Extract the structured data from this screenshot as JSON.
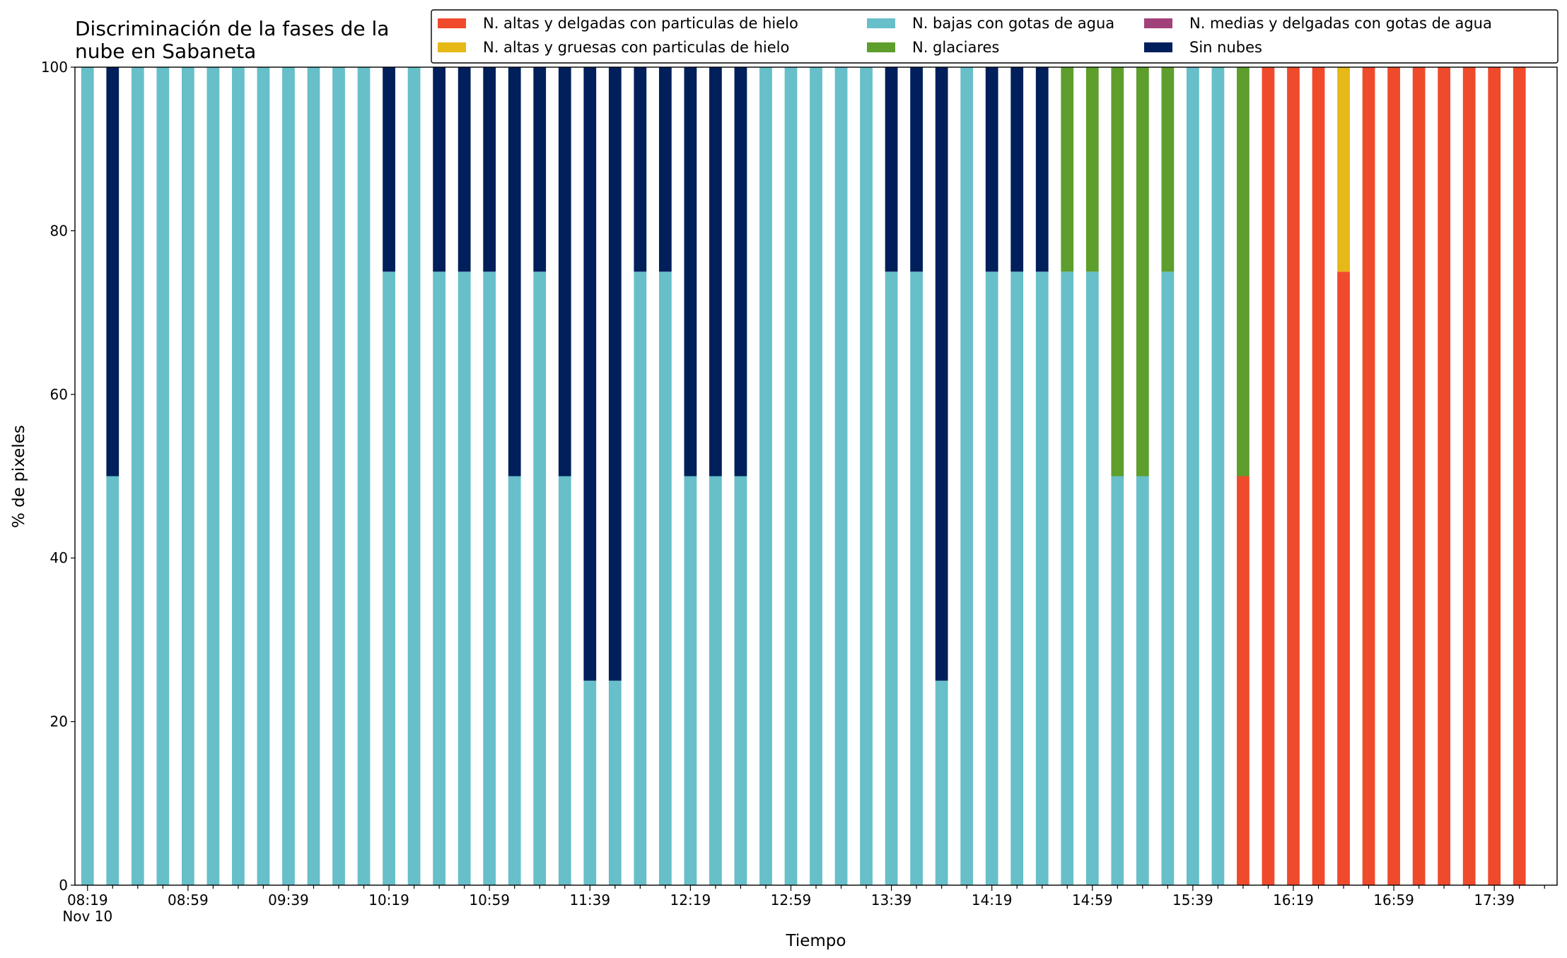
{
  "chart_data": {
    "type": "stacked_bar",
    "title": "Discriminación de la fases de la\nnube en Sabaneta",
    "x_label": "Tiempo",
    "y_label": "% de pixeles",
    "categories": [
      "08:19\nNov 10",
      null,
      null,
      null,
      "08:59",
      null,
      null,
      null,
      "09:39",
      null,
      null,
      null,
      "10:19",
      null,
      null,
      null,
      "10:59",
      null,
      null,
      null,
      "11:39",
      null,
      null,
      null,
      "12:19",
      null,
      null,
      null,
      "12:59",
      null,
      null,
      null,
      "13:39",
      null,
      null,
      null,
      "14:19",
      null,
      null,
      null,
      "14:59",
      null,
      null,
      null,
      "15:39",
      null,
      null,
      null,
      "16:19",
      null,
      null,
      null,
      "16:59",
      null,
      null,
      null,
      "17:39",
      null
    ],
    "series": [
      {
        "name": "N. altas y delgadas con particulas de hielo",
        "color": "#f04a2c",
        "values": [
          0,
          0,
          0,
          0,
          0,
          0,
          0,
          0,
          0,
          0,
          0,
          0,
          0,
          0,
          0,
          0,
          0,
          0,
          0,
          0,
          0,
          0,
          0,
          0,
          0,
          0,
          0,
          0,
          0,
          0,
          0,
          0,
          0,
          0,
          0,
          0,
          0,
          0,
          0,
          0,
          0,
          0,
          0,
          0,
          0,
          0,
          50,
          100,
          100,
          100,
          75,
          100,
          100,
          100,
          100,
          100,
          100,
          100
        ]
      },
      {
        "name": "N. altas y gruesas con particulas de hielo",
        "color": "#e6b818",
        "values": [
          0,
          0,
          0,
          0,
          0,
          0,
          0,
          0,
          0,
          0,
          0,
          0,
          0,
          0,
          0,
          0,
          0,
          0,
          0,
          0,
          0,
          0,
          0,
          0,
          0,
          0,
          0,
          0,
          0,
          0,
          0,
          0,
          0,
          0,
          0,
          0,
          0,
          0,
          0,
          0,
          0,
          0,
          0,
          0,
          0,
          0,
          0,
          0,
          0,
          0,
          25,
          0,
          0,
          0,
          0,
          0,
          0,
          0
        ]
      },
      {
        "name": "N. bajas con gotas de agua",
        "color": "#67bfc9",
        "values": [
          100,
          50,
          100,
          100,
          100,
          100,
          100,
          100,
          100,
          100,
          100,
          100,
          75,
          100,
          75,
          75,
          75,
          50,
          75,
          50,
          25,
          25,
          75,
          75,
          50,
          50,
          50,
          100,
          100,
          100,
          100,
          100,
          75,
          75,
          25,
          100,
          75,
          75,
          75,
          75,
          75,
          50,
          50,
          75,
          100,
          100,
          0,
          0,
          0,
          0,
          0,
          0,
          0,
          0,
          0,
          0,
          0,
          0
        ]
      },
      {
        "name": "N. glaciares",
        "color": "#5d9e2c",
        "values": [
          0,
          0,
          0,
          0,
          0,
          0,
          0,
          0,
          0,
          0,
          0,
          0,
          0,
          0,
          0,
          0,
          0,
          0,
          0,
          0,
          0,
          0,
          0,
          0,
          0,
          0,
          0,
          0,
          0,
          0,
          0,
          0,
          0,
          0,
          0,
          0,
          0,
          0,
          0,
          25,
          25,
          50,
          50,
          25,
          0,
          0,
          50,
          0,
          0,
          0,
          0,
          0,
          0,
          0,
          0,
          0,
          0,
          0
        ]
      },
      {
        "name": "N. medias y delgadas con gotas de agua",
        "color": "#a2407a",
        "values": [
          0,
          0,
          0,
          0,
          0,
          0,
          0,
          0,
          0,
          0,
          0,
          0,
          0,
          0,
          0,
          0,
          0,
          0,
          0,
          0,
          0,
          0,
          0,
          0,
          0,
          0,
          0,
          0,
          0,
          0,
          0,
          0,
          0,
          0,
          0,
          0,
          0,
          0,
          0,
          0,
          0,
          0,
          0,
          0,
          0,
          0,
          0,
          0,
          0,
          0,
          0,
          0,
          0,
          0,
          0,
          0,
          0,
          0
        ]
      },
      {
        "name": "Sin nubes",
        "color": "#001f5b",
        "values": [
          0,
          50,
          0,
          0,
          0,
          0,
          0,
          0,
          0,
          0,
          0,
          0,
          25,
          0,
          25,
          25,
          25,
          50,
          25,
          50,
          75,
          75,
          25,
          25,
          50,
          50,
          50,
          0,
          0,
          0,
          0,
          0,
          25,
          25,
          75,
          0,
          25,
          25,
          25,
          0,
          0,
          0,
          0,
          0,
          0,
          0,
          0,
          0,
          0,
          0,
          0,
          0,
          0,
          0,
          0,
          0,
          0,
          0
        ]
      }
    ],
    "ylim": [
      0,
      100
    ],
    "yticks": [
      0,
      20,
      40,
      60,
      80,
      100
    ],
    "legend": "upper right"
  }
}
